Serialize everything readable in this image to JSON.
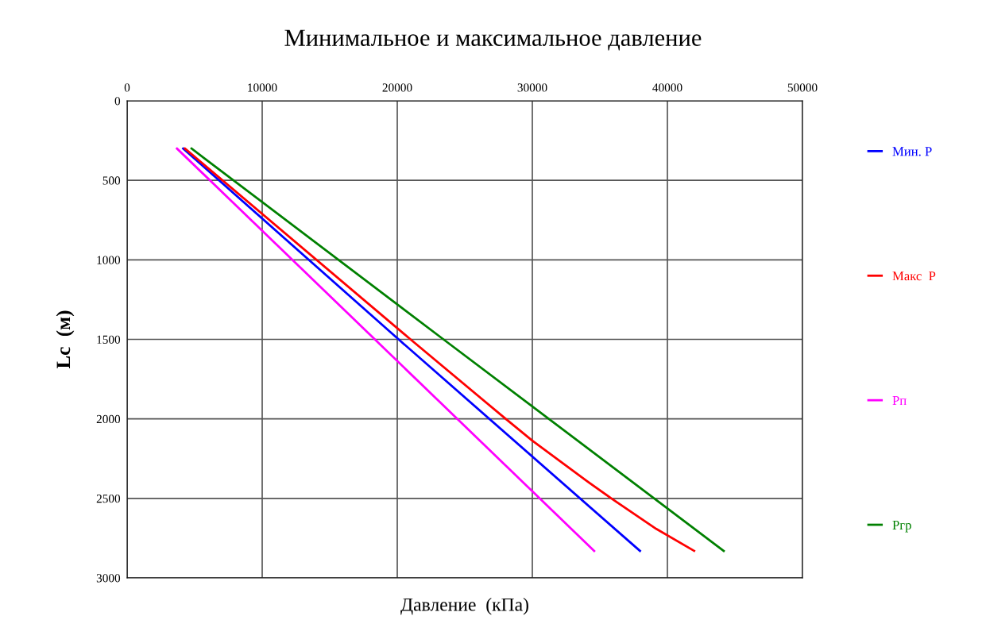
{
  "chart_data": {
    "type": "line",
    "title": "Минимальное и максимальное давление",
    "xlabel": "Давление  (кПа)",
    "ylabel": "Lc  (м)",
    "xlim": [
      0,
      50000
    ],
    "xticks": [
      0,
      10000,
      20000,
      30000,
      40000,
      50000
    ],
    "ylim": [
      3000,
      0
    ],
    "yticks": [
      0,
      500,
      1000,
      1500,
      2000,
      2500,
      3000
    ],
    "grid": true,
    "legend": "right",
    "marker": "none",
    "line_style": "solid",
    "series": [
      {
        "name": "Мин. Р",
        "color": "#0000ff",
        "x": [
          4150,
          20100,
          37970
        ],
        "values": [
          300,
          1500,
          2830
        ]
      },
      {
        "name": "Макс  Р",
        "color": "#ff0000",
        "x": [
          4280,
          20980,
          28030,
          30000,
          34090,
          35850,
          39180,
          41980
        ],
        "values": [
          300,
          1500,
          2000,
          2137,
          2394,
          2500,
          2692,
          2830
        ]
      },
      {
        "name": "Рп",
        "color": "#ff00ff",
        "x": [
          3690,
          18340,
          34580
        ],
        "values": [
          300,
          1500,
          2830
        ]
      },
      {
        "name": "Ргр",
        "color": "#008000",
        "x": [
          4770,
          23420,
          44170
        ],
        "values": [
          300,
          1500,
          2830
        ]
      }
    ]
  }
}
